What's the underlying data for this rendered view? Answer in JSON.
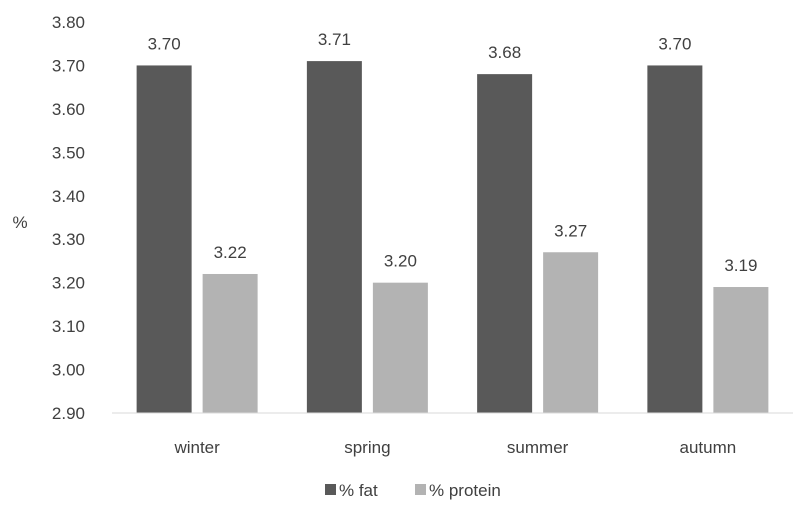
{
  "chart_data": {
    "type": "bar",
    "categories": [
      "winter",
      "spring",
      "summer",
      "autumn"
    ],
    "series": [
      {
        "name": "% fat",
        "values": [
          3.7,
          3.71,
          3.68,
          3.7
        ],
        "labels": [
          "3.70",
          "3.71",
          "3.68",
          "3.70"
        ],
        "color": "#595959"
      },
      {
        "name": "% protein",
        "values": [
          3.22,
          3.2,
          3.27,
          3.19
        ],
        "labels": [
          "3.22",
          "3.20",
          "3.27",
          "3.19"
        ],
        "color": "#b3b3b3"
      }
    ],
    "ylabel": "%",
    "xlabel": "",
    "ylim": [
      2.9,
      3.8
    ],
    "yticks": [
      "2.90",
      "3.00",
      "3.10",
      "3.20",
      "3.30",
      "3.40",
      "3.50",
      "3.60",
      "3.70",
      "3.80"
    ],
    "grid": false,
    "legend_position": "bottom"
  }
}
